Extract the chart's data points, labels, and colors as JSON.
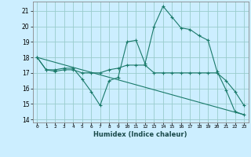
{
  "xlabel": "Humidex (Indice chaleur)",
  "bg_color": "#cceeff",
  "grid_color": "#99cccc",
  "line_color": "#1a7a6a",
  "xlim": [
    -0.5,
    23.5
  ],
  "ylim": [
    13.8,
    21.6
  ],
  "yticks": [
    14,
    15,
    16,
    17,
    18,
    19,
    20,
    21
  ],
  "xticks": [
    0,
    1,
    2,
    3,
    4,
    5,
    6,
    7,
    8,
    9,
    10,
    11,
    12,
    13,
    14,
    15,
    16,
    17,
    18,
    19,
    20,
    21,
    22,
    23
  ],
  "line1_x": [
    0,
    1,
    2,
    3,
    4,
    5,
    6,
    7,
    8,
    9,
    10,
    11,
    12,
    13,
    14,
    15,
    16,
    17,
    18,
    19,
    20,
    21,
    22,
    23
  ],
  "line1_y": [
    18.0,
    17.2,
    17.2,
    17.3,
    17.3,
    16.6,
    15.8,
    14.9,
    16.5,
    16.7,
    19.0,
    19.1,
    17.6,
    20.0,
    21.3,
    20.6,
    19.9,
    19.8,
    19.4,
    19.1,
    17.1,
    15.9,
    14.5,
    14.3
  ],
  "line2_x": [
    0,
    1,
    2,
    3,
    4,
    5,
    6,
    7,
    8,
    9,
    10,
    11,
    12,
    13,
    14,
    15,
    16,
    17,
    18,
    19,
    20,
    21,
    22,
    23
  ],
  "line2_y": [
    18.0,
    17.2,
    17.1,
    17.2,
    17.2,
    17.0,
    17.0,
    17.0,
    17.2,
    17.3,
    17.5,
    17.5,
    17.5,
    17.0,
    17.0,
    17.0,
    17.0,
    17.0,
    17.0,
    17.0,
    17.0,
    16.5,
    15.8,
    14.9
  ],
  "line3_x": [
    0,
    23
  ],
  "line3_y": [
    18.0,
    14.3
  ]
}
